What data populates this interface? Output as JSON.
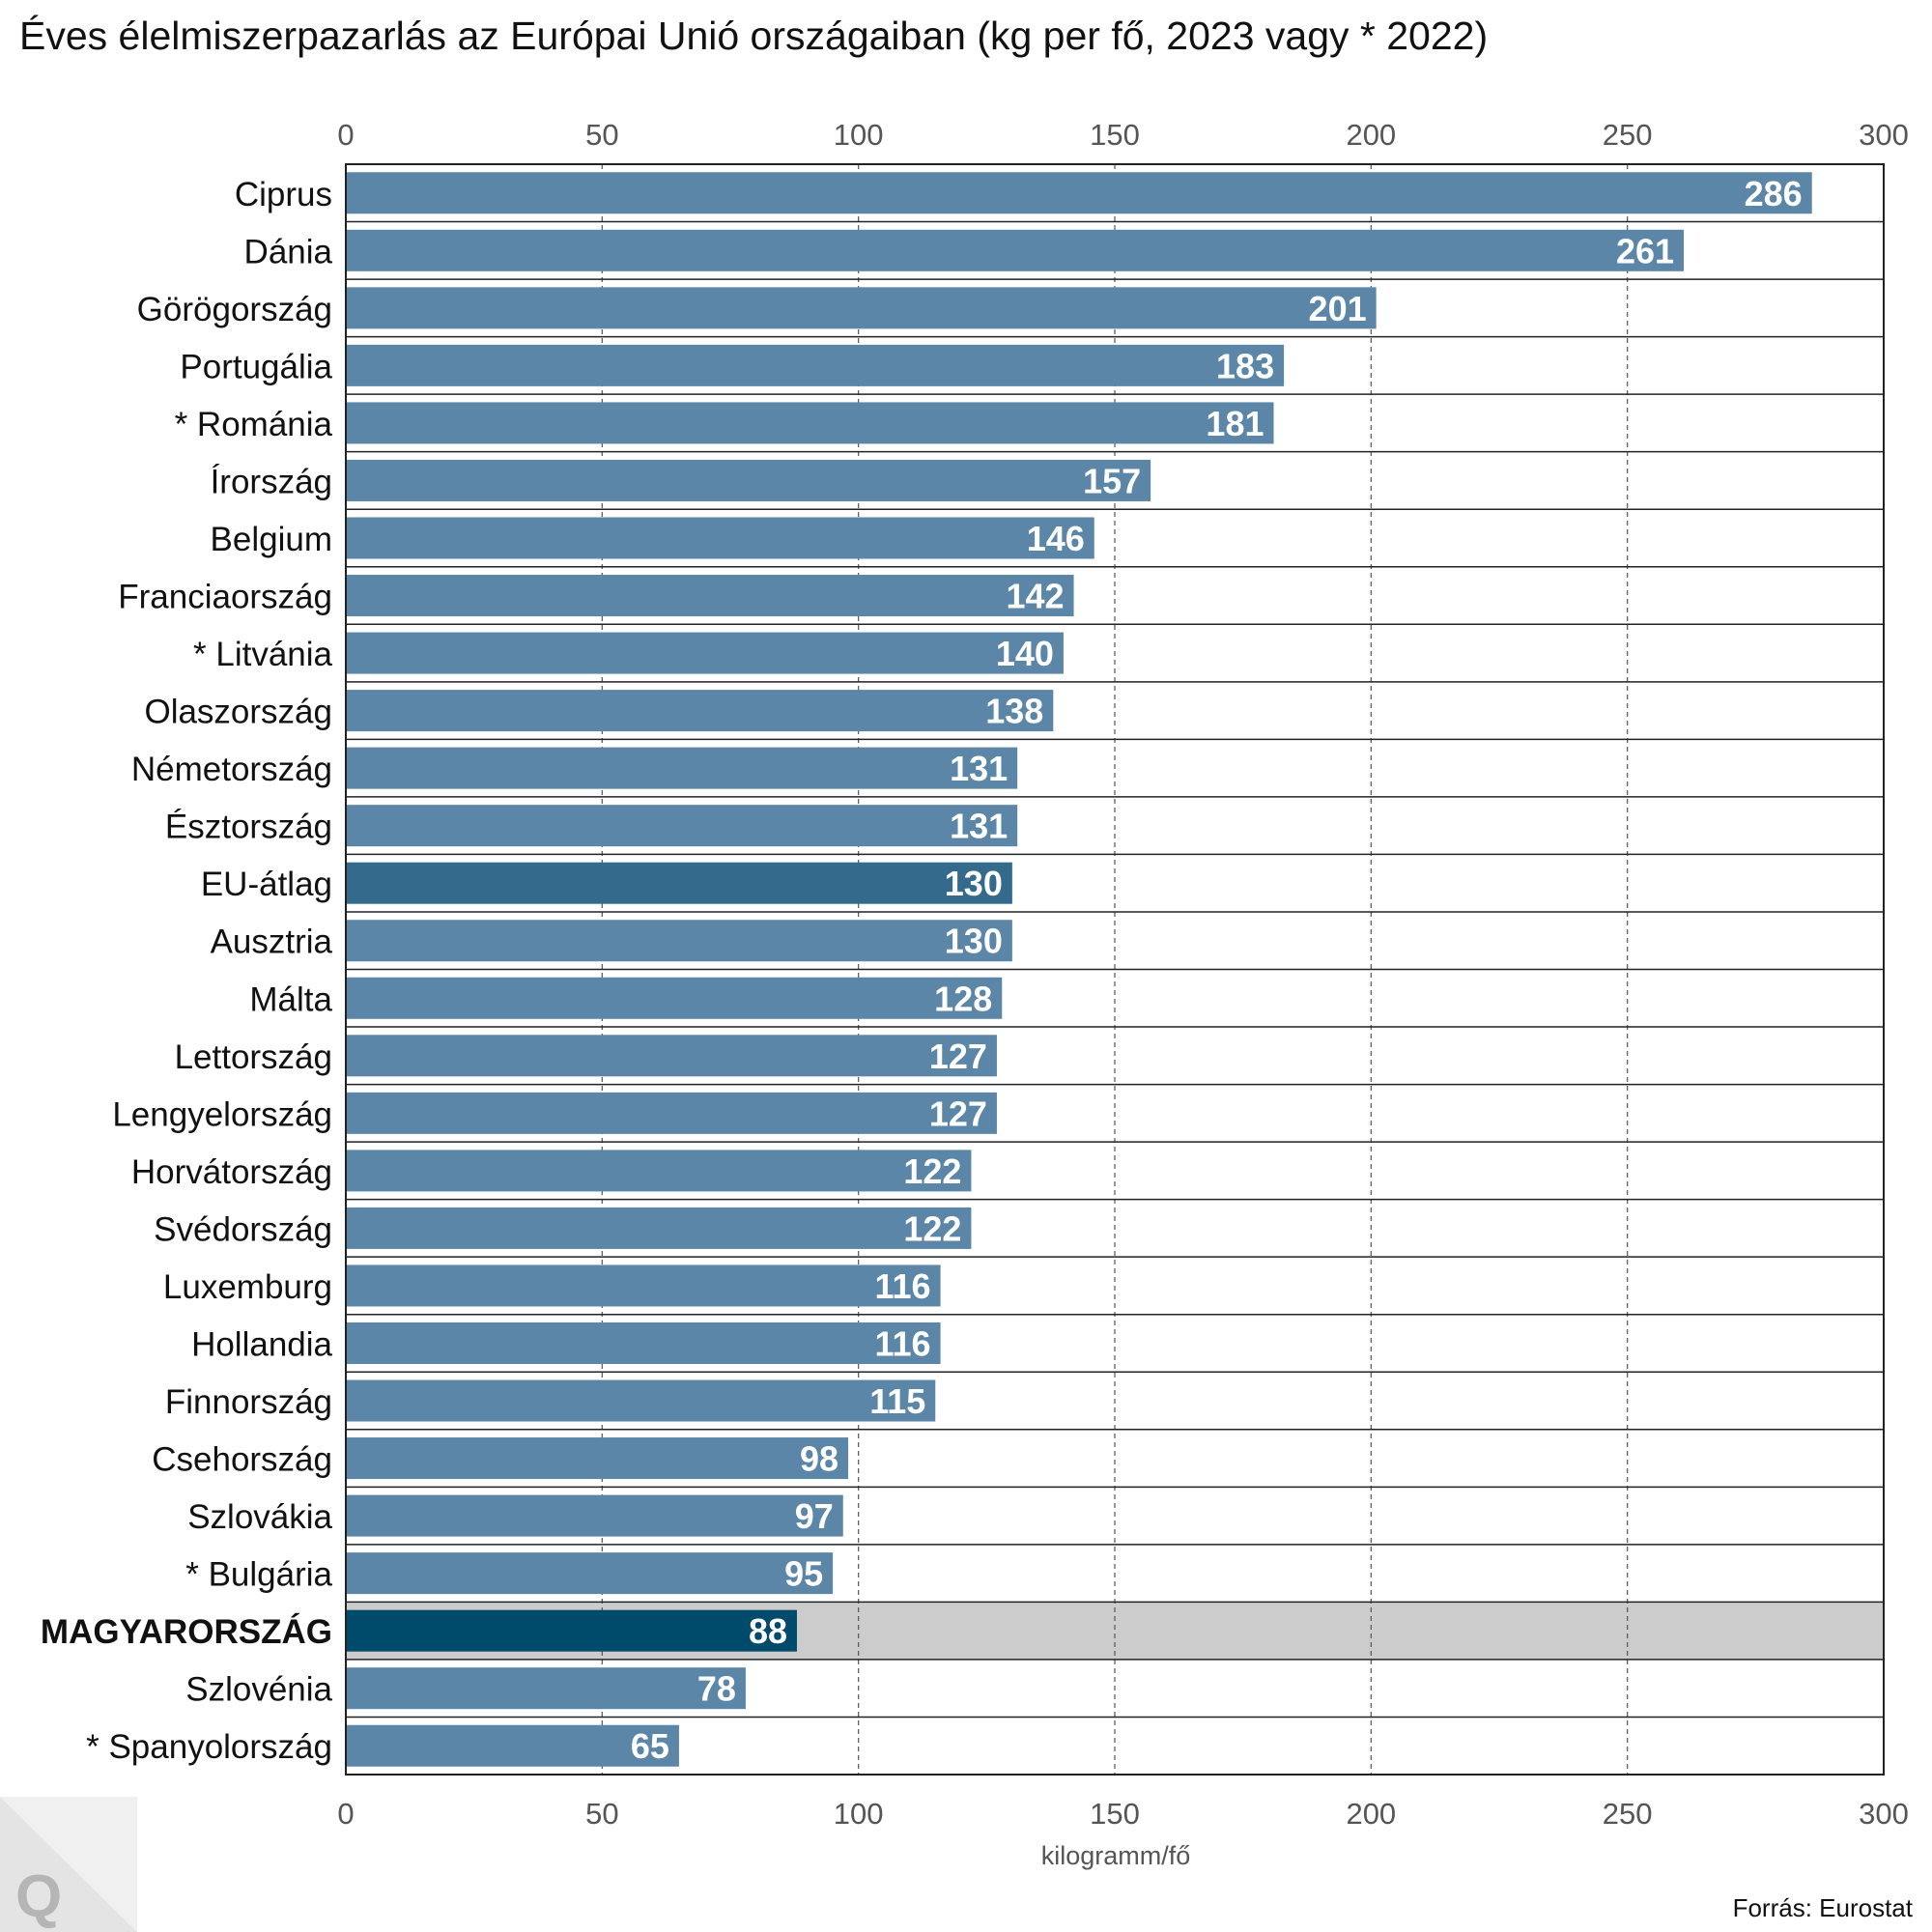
{
  "title": "Éves élelmiszerpazarlás az Európai Unió országaiban (kg per fő, 2023 vagy * 2022)",
  "source": "Forrás: Eurostat",
  "logo_text": "Q",
  "colors": {
    "bar": "#5b86a7",
    "bar_average": "#346a8c",
    "bar_highlight": "#004a6b",
    "highlight_background": "#cccccc",
    "grid": "#555555",
    "frame": "#222222",
    "value_label": "#ffffff"
  },
  "chart_data": {
    "type": "bar",
    "orientation": "horizontal",
    "categories": [
      "Ciprus",
      "Dánia",
      "Görögország",
      "Portugália",
      "* Románia",
      "Írország",
      "Belgium",
      "Franciaország",
      "* Litvánia",
      "Olaszország",
      "Németország",
      "Észtország",
      "EU-átlag",
      "Ausztria",
      "Málta",
      "Lettország",
      "Lengyelország",
      "Horvátország",
      "Svédország",
      "Luxemburg",
      "Hollandia",
      "Finnország",
      "Csehország",
      "Szlovákia",
      "* Bulgária",
      "MAGYARORSZÁG",
      "Szlovénia",
      "* Spanyolország"
    ],
    "values": [
      286,
      261,
      201,
      183,
      181,
      157,
      146,
      142,
      140,
      138,
      131,
      131,
      130,
      130,
      128,
      127,
      127,
      122,
      122,
      116,
      116,
      115,
      98,
      97,
      95,
      88,
      78,
      65
    ],
    "average_category": "EU-átlag",
    "highlight_category": "MAGYARORSZÁG",
    "xlim": [
      0,
      300
    ],
    "xticks": [
      0,
      50,
      100,
      150,
      200,
      250,
      300
    ],
    "xlabel": "kilogramm/fő",
    "ylabel": "",
    "grid": "vertical dashed",
    "axis_labels_position": "top and bottom",
    "data_labels": "inside bar end"
  }
}
